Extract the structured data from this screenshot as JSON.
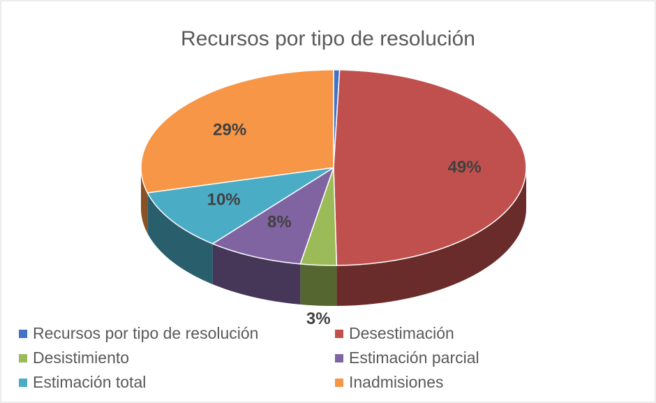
{
  "chart_data": {
    "type": "pie",
    "title": "Recursos por tipo de resolución",
    "categories": [
      "Recursos por tipo de resolución",
      "Desestimación",
      "Desistimiento",
      "Estimación parcial",
      "Estimación total",
      "Inadmisiones"
    ],
    "values": [
      0.5,
      49,
      3,
      8,
      10,
      29
    ],
    "value_labels": [
      null,
      "49%",
      "3%",
      "8%",
      "10%",
      "29%"
    ],
    "colors": [
      "#4472c4",
      "#c0504d",
      "#9bbb59",
      "#8064a2",
      "#4bacc6",
      "#f79646"
    ],
    "legend": "bottom"
  }
}
